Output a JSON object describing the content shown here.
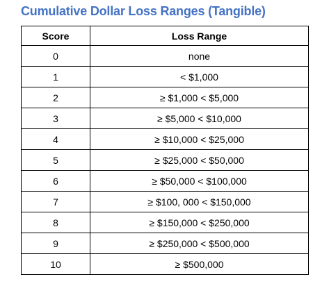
{
  "title": "Cumulative Dollar Loss Ranges (Tangible)",
  "columns": [
    "Score",
    "Loss Range"
  ],
  "rows": [
    {
      "score": "0",
      "range": "none"
    },
    {
      "score": "1",
      "range": "< $1,000"
    },
    {
      "score": "2",
      "range": "≥ $1,000 < $5,000"
    },
    {
      "score": "3",
      "range": "≥ $5,000 < $10,000"
    },
    {
      "score": "4",
      "range": "≥ $10,000 < $25,000"
    },
    {
      "score": "5",
      "range": "≥ $25,000 < $50,000"
    },
    {
      "score": "6",
      "range": "≥ $50,000 < $100,000"
    },
    {
      "score": "7",
      "range": "≥ $100, 000 < $150,000"
    },
    {
      "score": "8",
      "range": "≥ $150,000 < $250,000"
    },
    {
      "score": "9",
      "range": "≥ $250,000 < $500,000"
    },
    {
      "score": "10",
      "range": "≥ $500,000"
    }
  ],
  "colors": {
    "title": "#4472c4",
    "border": "#000000",
    "text": "#000000"
  }
}
